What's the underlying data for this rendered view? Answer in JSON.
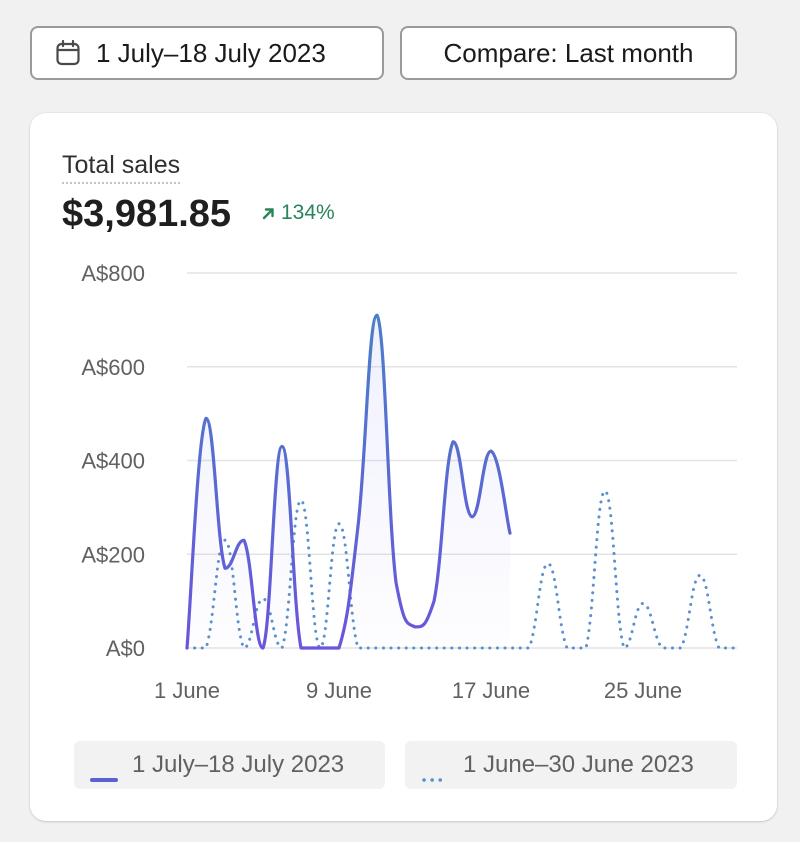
{
  "toolbar": {
    "date_range_label": "1 July–18 July 2023",
    "compare_label": "Compare: Last month"
  },
  "metric": {
    "label": "Total sales",
    "value": "$3,981.85",
    "change": "134%",
    "change_direction": "up"
  },
  "colors": {
    "current": "#5b5fd6",
    "current_top": "#4a7fc8",
    "previous": "#5b8fcf",
    "positive": "#29845a",
    "grid": "#e3e3e3"
  },
  "chart_data": {
    "type": "line",
    "ylim": [
      0,
      800
    ],
    "yticks": [
      0,
      200,
      400,
      600,
      800
    ],
    "ytick_labels": [
      "A$0",
      "A$200",
      "A$400",
      "A$600",
      "A$800"
    ],
    "xlim": [
      1,
      30
    ],
    "xticks": [
      1,
      9,
      17,
      25
    ],
    "xtick_labels": [
      "1 June",
      "9 June",
      "17 June",
      "25 June"
    ],
    "grid": true,
    "legend_position": "bottom",
    "series": [
      {
        "name": "1 July–18 July 2023",
        "style": "solid",
        "x": [
          1,
          2,
          3,
          4,
          5,
          6,
          7,
          8,
          9,
          10,
          11,
          12,
          13,
          14,
          15,
          16,
          17,
          18
        ],
        "values": [
          0,
          490,
          170,
          230,
          0,
          430,
          0,
          0,
          0,
          260,
          710,
          140,
          45,
          100,
          440,
          280,
          420,
          245
        ]
      },
      {
        "name": "1 June–30 June 2023",
        "style": "dotted",
        "x": [
          1,
          2,
          3,
          4,
          5,
          6,
          7,
          8,
          9,
          10,
          11,
          12,
          13,
          14,
          15,
          16,
          17,
          18,
          19,
          20,
          21,
          22,
          23,
          24,
          25,
          26,
          27,
          28,
          29,
          30
        ],
        "values": [
          0,
          0,
          230,
          0,
          105,
          0,
          315,
          0,
          265,
          0,
          0,
          0,
          0,
          0,
          0,
          0,
          0,
          0,
          0,
          180,
          0,
          0,
          335,
          0,
          95,
          0,
          0,
          155,
          0,
          0
        ]
      }
    ]
  }
}
